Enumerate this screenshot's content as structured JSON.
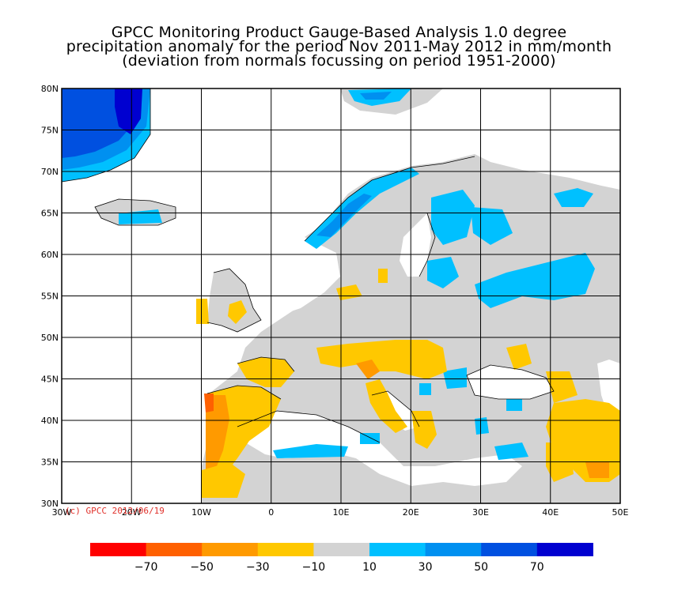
{
  "title": {
    "line1": "GPCC Monitoring Product Gauge-Based Analysis 1.0 degree",
    "line2": "precipitation anomaly for the period Nov 2011-May 2012 in mm/month",
    "line3": "(deviation from normals focussing on period 1951-2000)"
  },
  "copyright": "(c) GPCC 2012/06/19",
  "axes": {
    "lat_ticks": [
      "80N",
      "75N",
      "70N",
      "65N",
      "60N",
      "55N",
      "50N",
      "45N",
      "40N",
      "35N",
      "30N"
    ],
    "lon_ticks": [
      "30W",
      "20W",
      "10W",
      "0",
      "10E",
      "20E",
      "30E",
      "40E",
      "50E"
    ],
    "lat_range": [
      30,
      80
    ],
    "lon_range": [
      -30,
      50
    ],
    "grid": true
  },
  "colorbar": {
    "labels": [
      "-70",
      "-50",
      "-30",
      "-10",
      "10",
      "30",
      "50",
      "70"
    ],
    "colors": [
      "#ff0000",
      "#ff6000",
      "#ff9a00",
      "#ffc800",
      "#d3d3d3",
      "#00c0ff",
      "#0090f0",
      "#0050e0",
      "#0000d0"
    ]
  },
  "colors": {
    "grey": "#d3d3d3",
    "light_orange": "#ffc800",
    "orange": "#ff9a00",
    "dark_orange": "#ff6000",
    "light_blue": "#00c0ff",
    "mid_blue": "#0090f0",
    "dark_blue": "#0050e0",
    "navy": "#0000d0"
  }
}
